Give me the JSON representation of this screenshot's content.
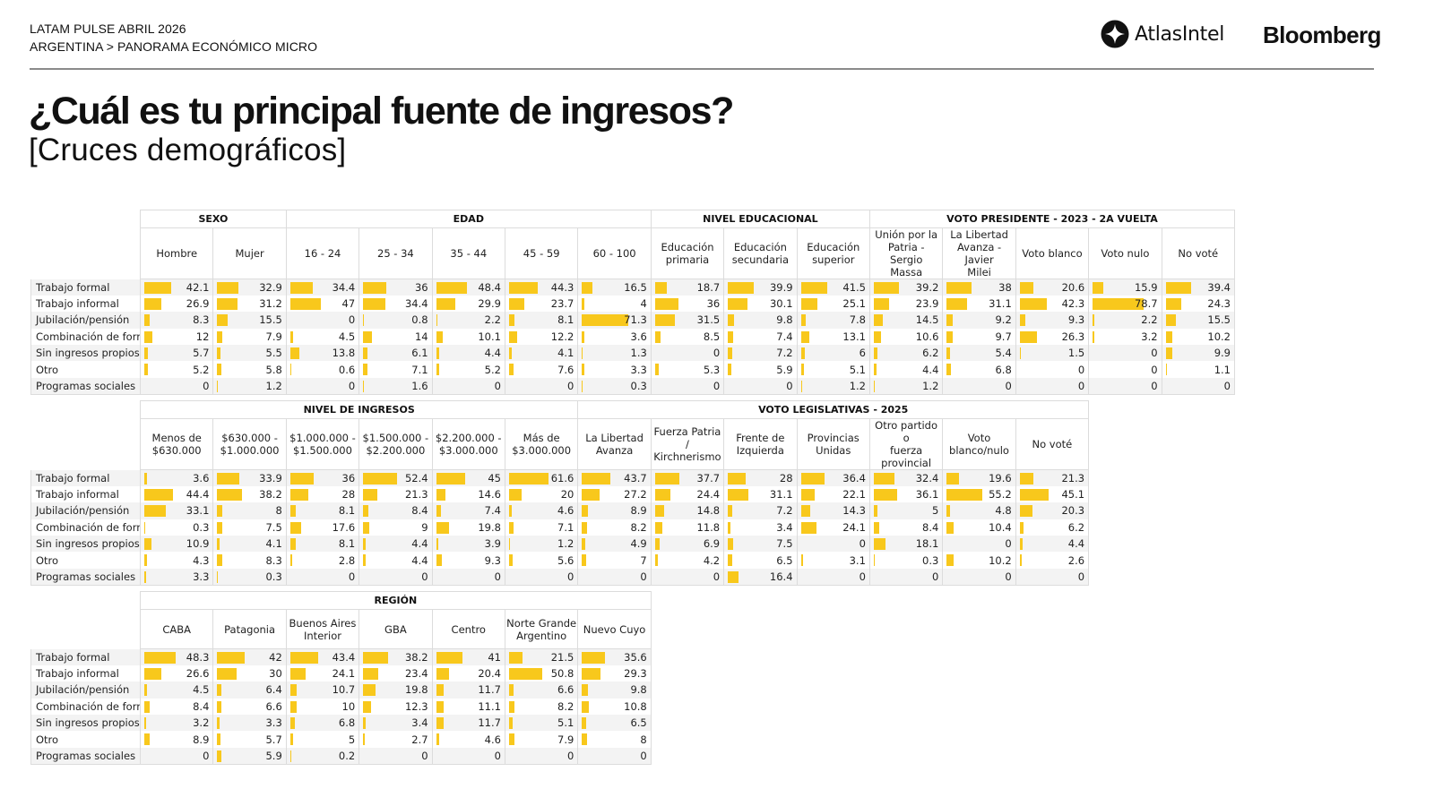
{
  "header": {
    "line1": "LATAM PULSE ABRIL 2026",
    "line2": "ARGENTINA > PANORAMA ECONÓMICO MICRO",
    "logo_atlas": "AtlasIntel",
    "logo_bloomberg": "Bloomberg"
  },
  "title": "¿Cuál es tu principal fuente de ingresos?",
  "subtitle": "[Cruces demográficos]",
  "colors": {
    "bar": "#f8c81c",
    "rule": "#8a8a8a",
    "grid": "#dcdcdc",
    "stripe": "#f3f3f3"
  },
  "row_labels": [
    "Trabajo formal",
    "Trabajo informal",
    "Jubilación/pensión",
    "Combinación de form",
    "Sin ingresos propios",
    "Otro",
    "Programas sociales"
  ],
  "tables": [
    {
      "groups": [
        {
          "name": "SEXO",
          "columns": [
            {
              "header": [
                "Hombre"
              ],
              "values": [
                42.1,
                26.9,
                8.3,
                12,
                5.7,
                5.2,
                0
              ]
            },
            {
              "header": [
                "Mujer"
              ],
              "values": [
                32.9,
                31.2,
                15.5,
                7.9,
                5.5,
                5.8,
                1.2
              ]
            }
          ]
        },
        {
          "name": "EDAD",
          "columns": [
            {
              "header": [
                "16 - 24"
              ],
              "values": [
                34.4,
                47,
                0,
                4.5,
                13.8,
                0.6,
                0
              ]
            },
            {
              "header": [
                "25 - 34"
              ],
              "values": [
                36,
                34.4,
                0.8,
                14,
                6.1,
                7.1,
                1.6
              ]
            },
            {
              "header": [
                "35 - 44"
              ],
              "values": [
                48.4,
                29.9,
                2.2,
                10.1,
                4.4,
                5.2,
                0
              ]
            },
            {
              "header": [
                "45 - 59"
              ],
              "values": [
                44.3,
                23.7,
                8.1,
                12.2,
                4.1,
                7.6,
                0
              ]
            },
            {
              "header": [
                "60 - 100"
              ],
              "values": [
                16.5,
                4,
                71.3,
                3.6,
                1.3,
                3.3,
                0.3
              ]
            }
          ]
        },
        {
          "name": "NIVEL EDUCACIONAL",
          "columns": [
            {
              "header": [
                "Educación",
                "primaria"
              ],
              "values": [
                18.7,
                36,
                31.5,
                8.5,
                0,
                5.3,
                0
              ]
            },
            {
              "header": [
                "Educación",
                "secundaria"
              ],
              "values": [
                39.9,
                30.1,
                9.8,
                7.4,
                7.2,
                5.9,
                0
              ]
            },
            {
              "header": [
                "Educación",
                "superior"
              ],
              "values": [
                41.5,
                25.1,
                7.8,
                13.1,
                6,
                5.1,
                1.2
              ]
            }
          ]
        },
        {
          "name": "VOTO PRESIDENTE - 2023 - 2A VUELTA",
          "columns": [
            {
              "header": [
                "Unión por la",
                "Patria - Sergio",
                "Massa"
              ],
              "values": [
                39.2,
                23.9,
                14.5,
                10.6,
                6.2,
                4.4,
                1.2
              ]
            },
            {
              "header": [
                "La Libertad",
                "Avanza - Javier",
                "Milei"
              ],
              "values": [
                38,
                31.1,
                9.2,
                9.7,
                5.4,
                6.8,
                0
              ]
            },
            {
              "header": [
                "Voto blanco"
              ],
              "values": [
                20.6,
                42.3,
                9.3,
                26.3,
                1.5,
                0,
                0
              ]
            },
            {
              "header": [
                "Voto nulo"
              ],
              "values": [
                15.9,
                78.7,
                2.2,
                3.2,
                0,
                0,
                0
              ]
            },
            {
              "header": [
                "No voté"
              ],
              "values": [
                39.4,
                24.3,
                15.5,
                10.2,
                9.9,
                1.1,
                0
              ]
            }
          ]
        }
      ]
    },
    {
      "groups": [
        {
          "name": "NIVEL DE INGRESOS",
          "columns": [
            {
              "header": [
                "Menos de",
                "$630.000"
              ],
              "values": [
                3.6,
                44.4,
                33.1,
                0.3,
                10.9,
                4.3,
                3.3
              ]
            },
            {
              "header": [
                "$630.000 -",
                "$1.000.000"
              ],
              "values": [
                33.9,
                38.2,
                8,
                7.5,
                4.1,
                8.3,
                0.3
              ]
            },
            {
              "header": [
                "$1.000.000 -",
                "$1.500.000"
              ],
              "values": [
                36,
                28,
                8.1,
                17.6,
                8.1,
                2.8,
                0
              ]
            },
            {
              "header": [
                "$1.500.000 -",
                "$2.200.000"
              ],
              "values": [
                52.4,
                21.3,
                8.4,
                9,
                4.4,
                4.4,
                0
              ]
            },
            {
              "header": [
                "$2.200.000 -",
                "$3.000.000"
              ],
              "values": [
                45,
                14.6,
                7.4,
                19.8,
                3.9,
                9.3,
                0
              ]
            },
            {
              "header": [
                "Más de",
                "$3.000.000"
              ],
              "values": [
                61.6,
                20,
                4.6,
                7.1,
                1.2,
                5.6,
                0
              ]
            }
          ]
        },
        {
          "name": "VOTO LEGISLATIVAS - 2025",
          "columns": [
            {
              "header": [
                "La Libertad",
                "Avanza"
              ],
              "values": [
                43.7,
                27.2,
                8.9,
                8.2,
                4.9,
                7,
                0
              ]
            },
            {
              "header": [
                "Fuerza Patria /",
                "Kirchnerismo"
              ],
              "values": [
                37.7,
                24.4,
                14.8,
                11.8,
                6.9,
                4.2,
                0
              ]
            },
            {
              "header": [
                "Frente de",
                "Izquierda"
              ],
              "values": [
                28,
                31.1,
                7.2,
                3.4,
                7.5,
                6.5,
                16.4
              ]
            },
            {
              "header": [
                "Provincias",
                "Unidas"
              ],
              "values": [
                36.4,
                22.1,
                14.3,
                24.1,
                0,
                3.1,
                0
              ]
            },
            {
              "header": [
                "Otro partido o",
                "fuerza",
                "provincial"
              ],
              "values": [
                32.4,
                36.1,
                5,
                8.4,
                18.1,
                0.3,
                0
              ]
            },
            {
              "header": [
                "Voto",
                "blanco/nulo"
              ],
              "values": [
                19.6,
                55.2,
                4.8,
                10.4,
                0,
                10.2,
                0
              ]
            },
            {
              "header": [
                "No voté"
              ],
              "values": [
                21.3,
                45.1,
                20.3,
                6.2,
                4.4,
                2.6,
                0
              ]
            }
          ]
        }
      ]
    },
    {
      "groups": [
        {
          "name": "REGIÓN",
          "columns": [
            {
              "header": [
                "CABA"
              ],
              "values": [
                48.3,
                26.6,
                4.5,
                8.4,
                3.2,
                8.9,
                0
              ]
            },
            {
              "header": [
                "Patagonia"
              ],
              "values": [
                42,
                30,
                6.4,
                6.6,
                3.3,
                5.7,
                5.9
              ]
            },
            {
              "header": [
                "Buenos Aires",
                "Interior"
              ],
              "values": [
                43.4,
                24.1,
                10.7,
                10,
                6.8,
                5,
                0.2
              ]
            },
            {
              "header": [
                "GBA"
              ],
              "values": [
                38.2,
                23.4,
                19.8,
                12.3,
                3.4,
                2.7,
                0
              ]
            },
            {
              "header": [
                "Centro"
              ],
              "values": [
                41,
                20.4,
                11.7,
                11.1,
                11.7,
                4.6,
                0
              ]
            },
            {
              "header": [
                "Norte Grande",
                "Argentino"
              ],
              "values": [
                21.5,
                50.8,
                6.6,
                8.2,
                5.1,
                7.9,
                0
              ]
            },
            {
              "header": [
                "Nuevo Cuyo"
              ],
              "values": [
                35.6,
                29.3,
                9.8,
                10.8,
                6.5,
                8,
                0
              ]
            }
          ]
        }
      ]
    }
  ]
}
